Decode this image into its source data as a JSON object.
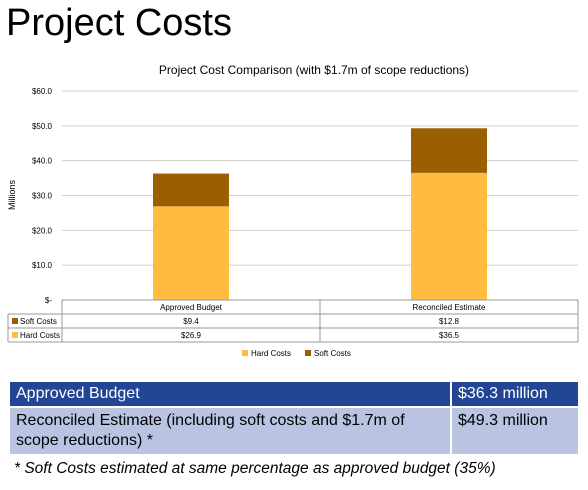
{
  "slide": {
    "title": "Project Costs",
    "footnote": "* Soft Costs estimated at same percentage as approved budget (35%)"
  },
  "summary_table": {
    "rows": [
      {
        "label": "Approved Budget",
        "value": "$36.3 million"
      },
      {
        "label": "Reconciled Estimate (including soft costs and $1.7m of scope reductions) *",
        "value": "$49.3 million"
      }
    ]
  },
  "chart_data": {
    "type": "bar",
    "stacked": true,
    "title": "Project Cost Comparison (with $1.7m of scope reductions)",
    "ylabel": "Millions",
    "xlabel": "",
    "categories": [
      "Approved Budget",
      "Reconciled Estimate"
    ],
    "series": [
      {
        "name": "Hard Costs",
        "values": [
          26.9,
          36.5
        ],
        "labels": [
          "$26.9",
          "$36.5"
        ],
        "color": "#ffbc3e"
      },
      {
        "name": "Soft Costs",
        "values": [
          9.4,
          12.8
        ],
        "labels": [
          "$9.4",
          "$12.8"
        ],
        "color": "#9a5f00"
      }
    ],
    "ylim": [
      0,
      60
    ],
    "yticks": [
      0,
      10,
      20,
      30,
      40,
      50,
      60
    ],
    "ytick_labels": [
      "$-",
      "$10.0",
      "$20.0",
      "$30.0",
      "$40.0",
      "$50.0",
      "$60.0"
    ],
    "grid": true,
    "legend": "bottom",
    "data_table": true
  }
}
